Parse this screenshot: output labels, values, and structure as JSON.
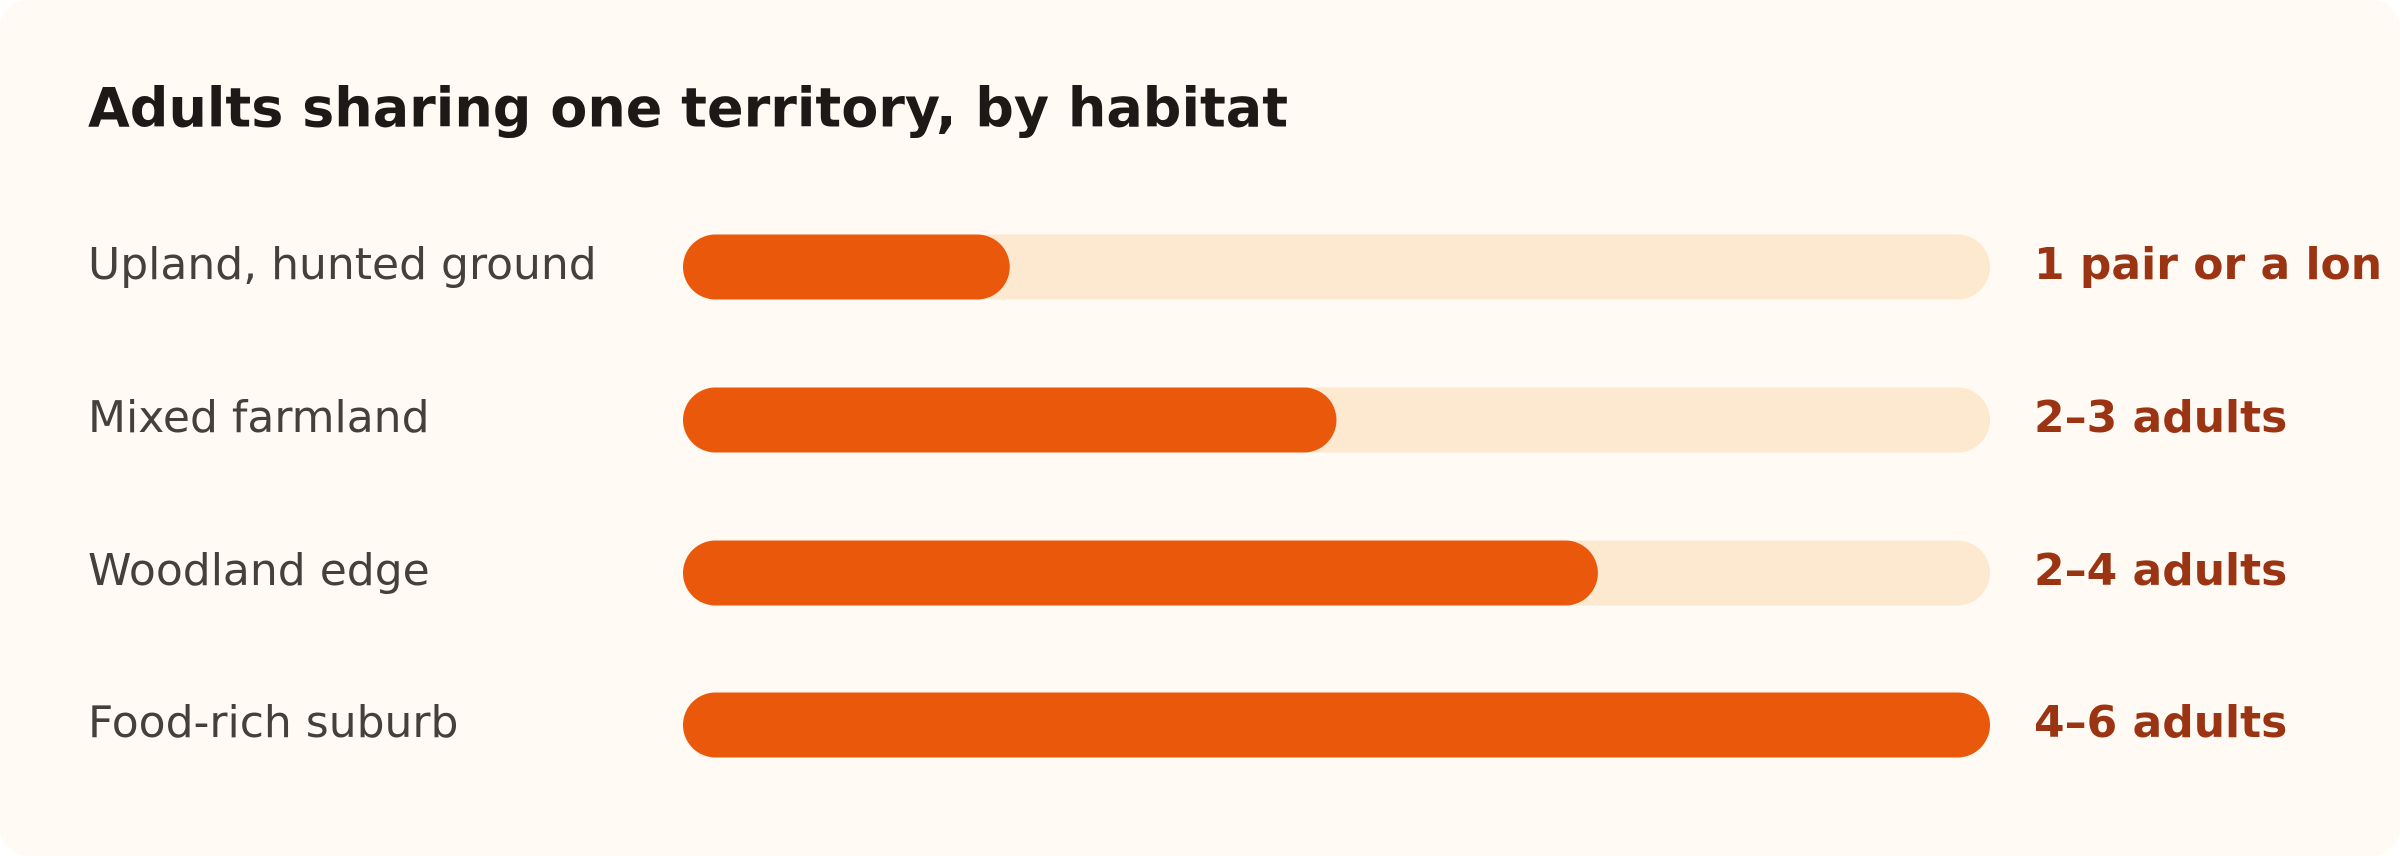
{
  "chart_data": {
    "type": "bar",
    "orientation": "horizontal",
    "title": "Adults sharing one territory, by habitat",
    "categories": [
      "Upland, hunted ground",
      "Mixed farmland",
      "Woodland edge",
      "Food-rich suburb"
    ],
    "values": [
      25,
      50,
      70,
      100
    ],
    "annotations": [
      "1 pair or a lon",
      "2–3 adults",
      "2–4 adults",
      "4–6 adults"
    ],
    "xlim": [
      0,
      100
    ],
    "color": "#ea580c",
    "track_color": "#fde8d0",
    "annotation_color": "#9a3412"
  }
}
